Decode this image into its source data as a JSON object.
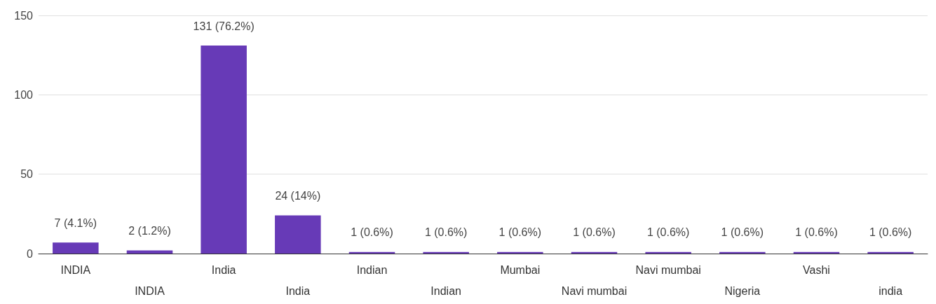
{
  "chart_data": {
    "type": "bar",
    "categories": [
      "INDIA",
      "INDIA",
      "India",
      "India",
      "Indian",
      "Indian",
      "Mumbai",
      "Navi mumbai",
      "Navi mumbai",
      "Nigeria",
      "Vashi",
      "india"
    ],
    "values": [
      7,
      2,
      131,
      24,
      1,
      1,
      1,
      1,
      1,
      1,
      1,
      1
    ],
    "value_labels": [
      "7 (4.1%)",
      "2 (1.2%)",
      "131 (76.2%)",
      "24 (14%)",
      "1 (0.6%)",
      "1 (0.6%)",
      "1 (0.6%)",
      "1 (0.6%)",
      "1 (0.6%)",
      "1 (0.6%)",
      "1 (0.6%)",
      "1 (0.6%)"
    ],
    "color": "#673ab7",
    "ylim": [
      0,
      150
    ],
    "yticks": [
      0,
      50,
      100,
      150
    ],
    "grid": "y"
  }
}
